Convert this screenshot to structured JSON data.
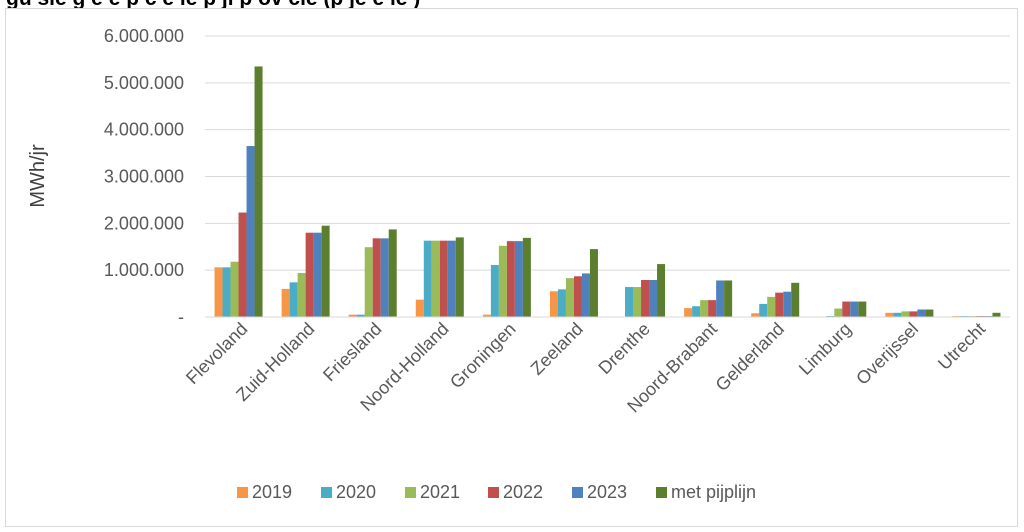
{
  "page_heading": "gu    sie   g  e      e  p  c  e  ie  p   ji  p ov  cie  (p  je  e  ie  )",
  "chart_data": {
    "type": "bar",
    "title": "",
    "xlabel": "",
    "ylabel": "MWh/jr",
    "ylim": [
      0,
      6000000
    ],
    "yticks": [
      0,
      1000000,
      2000000,
      3000000,
      4000000,
      5000000,
      6000000
    ],
    "ytick_labels": [
      "-",
      "1.000.000",
      "2.000.000",
      "3.000.000",
      "4.000.000",
      "5.000.000",
      "6.000.000"
    ],
    "grid": true,
    "legend_position": "bottom",
    "categories": [
      "Flevoland",
      "Zuid-Holland",
      "Friesland",
      "Noord-Holland",
      "Groningen",
      "Zeeland",
      "Drenthe",
      "Noord-Brabant",
      "Gelderland",
      "Limburg",
      "Overijssel",
      "Utrecht"
    ],
    "series": [
      {
        "name": "2019",
        "color": "#f79646",
        "values": [
          1060000,
          600000,
          50000,
          370000,
          50000,
          550000,
          0,
          190000,
          80000,
          0,
          90000,
          20000
        ]
      },
      {
        "name": "2020",
        "color": "#4bacc6",
        "values": [
          1060000,
          740000,
          50000,
          1630000,
          1110000,
          590000,
          640000,
          230000,
          280000,
          20000,
          90000,
          20000
        ]
      },
      {
        "name": "2021",
        "color": "#9bbb59",
        "values": [
          1180000,
          940000,
          1490000,
          1630000,
          1520000,
          830000,
          640000,
          360000,
          430000,
          180000,
          120000,
          20000
        ]
      },
      {
        "name": "2022",
        "color": "#c0504d",
        "values": [
          2230000,
          1800000,
          1680000,
          1630000,
          1620000,
          870000,
          790000,
          360000,
          520000,
          330000,
          120000,
          20000
        ]
      },
      {
        "name": "2023",
        "color": "#4f81bd",
        "values": [
          3650000,
          1800000,
          1680000,
          1630000,
          1620000,
          930000,
          790000,
          780000,
          540000,
          330000,
          160000,
          20000
        ]
      },
      {
        "name": "met pijplijn",
        "color": "#5b7f2e",
        "values": [
          5350000,
          1950000,
          1870000,
          1700000,
          1690000,
          1450000,
          1130000,
          780000,
          730000,
          330000,
          160000,
          90000
        ]
      }
    ]
  }
}
